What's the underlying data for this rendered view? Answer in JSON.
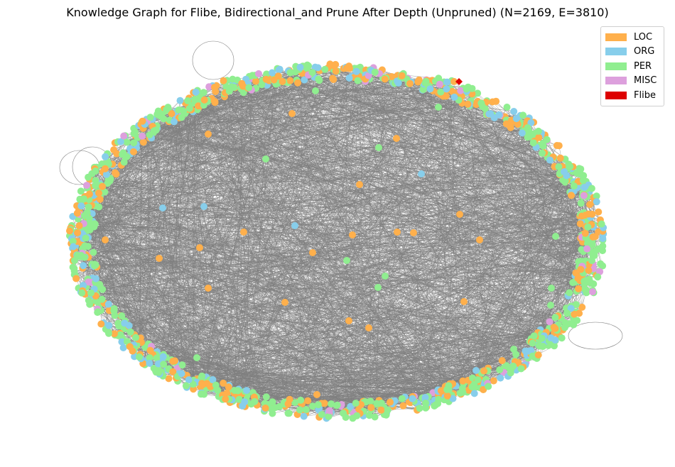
{
  "figure": {
    "title": "Knowledge Graph for Flibe, Bidirectional_and Prune After Depth (Unpruned) (N=2169, E=3810)"
  },
  "graph": {
    "node_count": 2169,
    "edge_count": 3810,
    "edge_color": "#808080",
    "highlight_entity": "Flibe"
  },
  "legend": {
    "items": [
      {
        "label": "LOC",
        "color": "#ffb04c"
      },
      {
        "label": "ORG",
        "color": "#87ceeb"
      },
      {
        "label": "PER",
        "color": "#90ee90"
      },
      {
        "label": "MISC",
        "color": "#dda0dd"
      },
      {
        "label": "Flibe",
        "color": "#dd0000"
      }
    ]
  }
}
